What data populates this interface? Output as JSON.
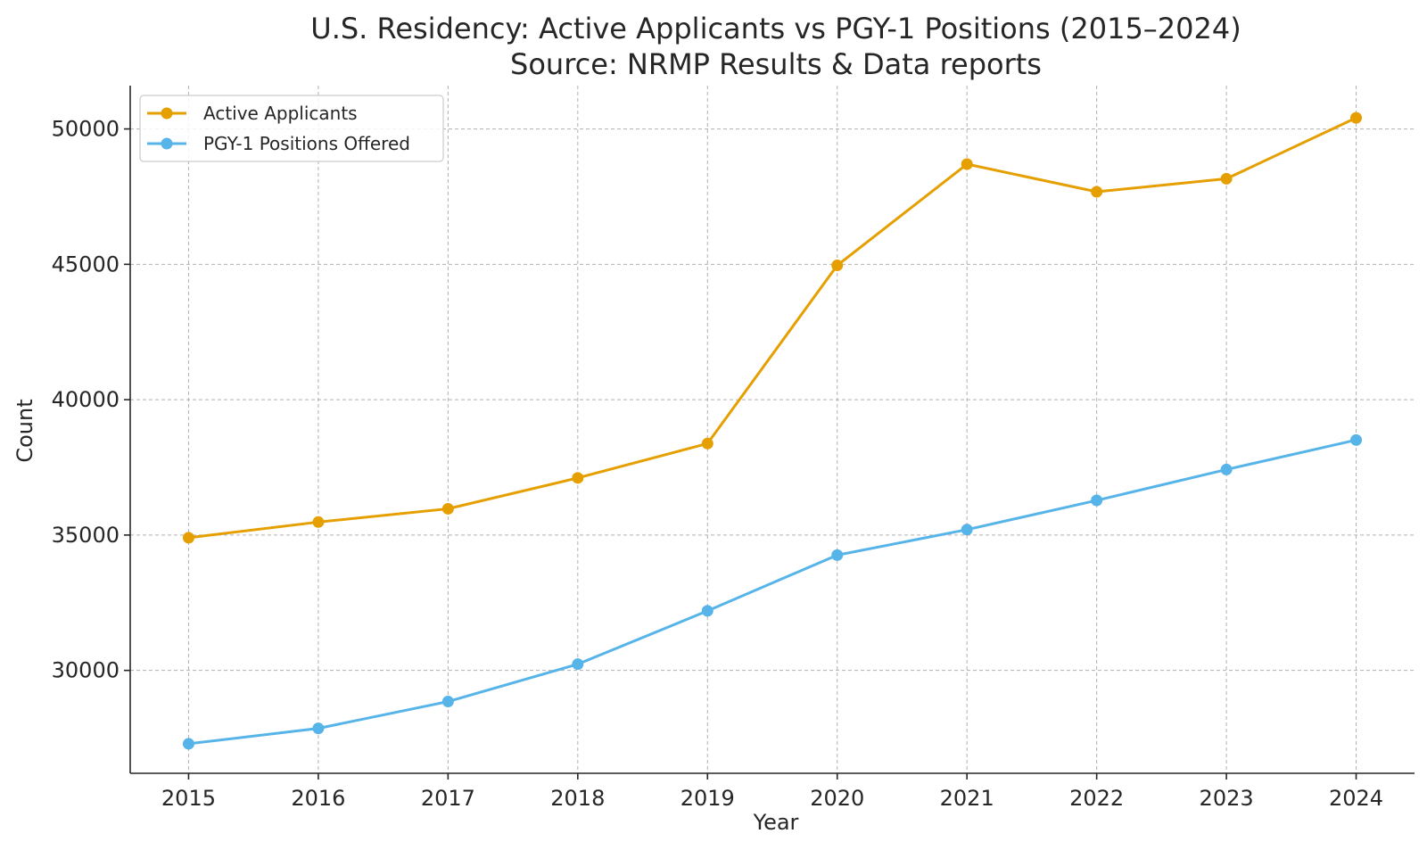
{
  "chart_data": {
    "type": "line",
    "title": "U.S. Residency: Active Applicants vs PGY-1 Positions (2015–2024)",
    "subtitle": "Source: NRMP Results & Data reports",
    "xlabel": "Year",
    "ylabel": "Count",
    "x": [
      2015,
      2016,
      2017,
      2018,
      2019,
      2020,
      2021,
      2022,
      2023,
      2024
    ],
    "x_tick_labels": [
      "2015",
      "2016",
      "2017",
      "2018",
      "2019",
      "2020",
      "2021",
      "2022",
      "2023",
      "2024"
    ],
    "xlim": [
      2014.55,
      2024.45
    ],
    "ylim": [
      26200,
      51600
    ],
    "yticks": [
      30000,
      35000,
      40000,
      45000,
      50000
    ],
    "y_tick_labels": [
      "30000",
      "35000",
      "40000",
      "45000",
      "50000"
    ],
    "grid": true,
    "legend_position": "top-left",
    "series": [
      {
        "name": "Active Applicants",
        "color": "#E69F00",
        "values": [
          34900,
          35480,
          35970,
          37110,
          38380,
          44960,
          48700,
          47680,
          48160,
          50410
        ]
      },
      {
        "name": "PGY-1 Positions Offered",
        "color": "#56B4E9",
        "values": [
          27290,
          27860,
          28850,
          30230,
          32200,
          34260,
          35200,
          36280,
          37420,
          38510
        ]
      }
    ]
  }
}
